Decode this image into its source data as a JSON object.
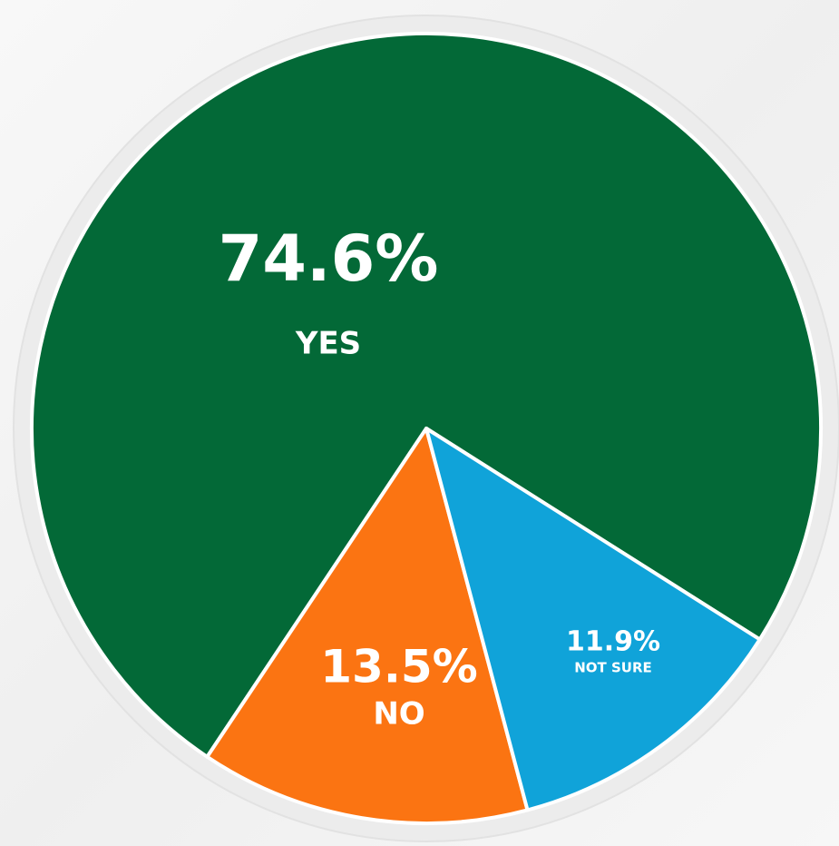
{
  "chart_data": {
    "type": "pie",
    "categories": [
      "YES",
      "NO",
      "NOT SURE"
    ],
    "values": [
      74.6,
      13.5,
      11.9
    ],
    "value_labels": [
      "74.6%",
      "13.5%",
      "11.9%"
    ],
    "colors": [
      "#036937",
      "#fb7412",
      "#10a3d9"
    ]
  }
}
